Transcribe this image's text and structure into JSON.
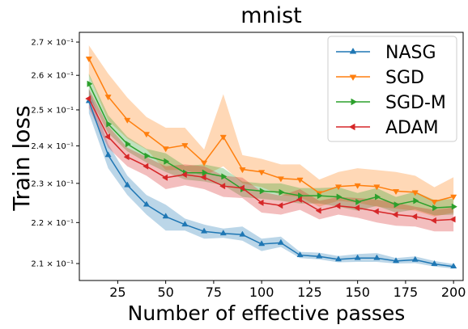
{
  "chart_data": {
    "type": "line",
    "title": "mnist",
    "xlabel": "Number of effective passes",
    "ylabel": "Train loss",
    "xlim": [
      5,
      205
    ],
    "ylim": [
      0.206,
      0.273
    ],
    "yscale": "log",
    "xticks": [
      25,
      50,
      75,
      100,
      125,
      150,
      175,
      200
    ],
    "yticks": [
      {
        "value": 0.21,
        "label": "2.1 × 10⁻¹"
      },
      {
        "value": 0.22,
        "label": "2.2 × 10⁻¹"
      },
      {
        "value": 0.23,
        "label": "2.3 × 10⁻¹"
      },
      {
        "value": 0.24,
        "label": "2.4 × 10⁻¹"
      },
      {
        "value": 0.25,
        "label": "2.5 × 10⁻¹"
      },
      {
        "value": 0.26,
        "label": "2.6 × 10⁻¹"
      },
      {
        "value": 0.27,
        "label": "2.7 × 10⁻¹"
      }
    ],
    "grid": false,
    "legend_position": "top-right",
    "x": [
      10,
      20,
      30,
      40,
      50,
      60,
      70,
      80,
      90,
      100,
      110,
      120,
      130,
      140,
      150,
      160,
      170,
      180,
      190,
      200
    ],
    "series": [
      {
        "name": "NASG",
        "color": "#1f77b4",
        "marker": "triangle-up",
        "values": [
          0.2525,
          0.2375,
          0.2295,
          0.2245,
          0.2215,
          0.2195,
          0.2178,
          0.2173,
          0.217,
          0.2147,
          0.215,
          0.212,
          0.2117,
          0.211,
          0.2113,
          0.2113,
          0.2106,
          0.2109,
          0.2099,
          0.2093
        ],
        "lower": [
          0.249,
          0.234,
          0.227,
          0.222,
          0.218,
          0.218,
          0.216,
          0.2162,
          0.2155,
          0.213,
          0.214,
          0.2113,
          0.211,
          0.2103,
          0.2104,
          0.2104,
          0.21,
          0.2101,
          0.2093,
          0.2088
        ],
        "upper": [
          0.256,
          0.2405,
          0.232,
          0.227,
          0.2245,
          0.221,
          0.2195,
          0.2185,
          0.219,
          0.216,
          0.2165,
          0.2128,
          0.2126,
          0.2118,
          0.2123,
          0.2125,
          0.2113,
          0.2117,
          0.2106,
          0.2099
        ]
      },
      {
        "name": "SGD",
        "color": "#ff7f0e",
        "marker": "triangle-down",
        "values": [
          0.265,
          0.2538,
          0.2472,
          0.2433,
          0.2393,
          0.2402,
          0.2355,
          0.2425,
          0.2337,
          0.233,
          0.2313,
          0.231,
          0.2275,
          0.2292,
          0.2295,
          0.2292,
          0.228,
          0.2277,
          0.2253,
          0.2266
        ],
        "lower": [
          0.26,
          0.247,
          0.242,
          0.239,
          0.2335,
          0.2335,
          0.232,
          0.2345,
          0.23,
          0.229,
          0.227,
          0.2265,
          0.224,
          0.2255,
          0.225,
          0.224,
          0.2235,
          0.223,
          0.2215,
          0.2225
        ],
        "upper": [
          0.269,
          0.2605,
          0.2535,
          0.248,
          0.245,
          0.245,
          0.239,
          0.2545,
          0.2375,
          0.2365,
          0.235,
          0.235,
          0.231,
          0.233,
          0.234,
          0.2335,
          0.233,
          0.232,
          0.229,
          0.2316
        ]
      },
      {
        "name": "SGD-M",
        "color": "#2ca02c",
        "marker": "triangle-right",
        "values": [
          0.2575,
          0.246,
          0.2405,
          0.2373,
          0.2358,
          0.2328,
          0.2328,
          0.2318,
          0.2285,
          0.228,
          0.2277,
          0.2268,
          0.2268,
          0.2265,
          0.2252,
          0.2265,
          0.2245,
          0.2255,
          0.2237,
          0.224
        ],
        "lower": [
          0.254,
          0.2435,
          0.2385,
          0.2355,
          0.233,
          0.231,
          0.2305,
          0.2295,
          0.2265,
          0.226,
          0.2255,
          0.2248,
          0.2248,
          0.224,
          0.223,
          0.2242,
          0.2225,
          0.2233,
          0.2218,
          0.222
        ],
        "upper": [
          0.2605,
          0.2485,
          0.2425,
          0.2392,
          0.238,
          0.2346,
          0.235,
          0.234,
          0.2305,
          0.23,
          0.23,
          0.2288,
          0.2288,
          0.229,
          0.2275,
          0.2288,
          0.2265,
          0.2278,
          0.2257,
          0.226
        ]
      },
      {
        "name": "ADAM",
        "color": "#d62728",
        "marker": "triangle-left",
        "values": [
          0.2532,
          0.2425,
          0.237,
          0.2345,
          0.2315,
          0.2323,
          0.2316,
          0.2293,
          0.2288,
          0.225,
          0.2243,
          0.2258,
          0.223,
          0.2242,
          0.2237,
          0.2228,
          0.222,
          0.2215,
          0.2205,
          0.2208
        ],
        "lower": [
          0.2505,
          0.2395,
          0.2345,
          0.232,
          0.2285,
          0.2295,
          0.2285,
          0.2265,
          0.2262,
          0.2225,
          0.222,
          0.2232,
          0.2208,
          0.222,
          0.2212,
          0.22,
          0.2192,
          0.219,
          0.2178,
          0.2178
        ],
        "upper": [
          0.256,
          0.2455,
          0.2395,
          0.237,
          0.2345,
          0.235,
          0.2345,
          0.232,
          0.2315,
          0.2278,
          0.2268,
          0.2285,
          0.2255,
          0.2265,
          0.2262,
          0.2258,
          0.225,
          0.224,
          0.2232,
          0.2238
        ]
      }
    ]
  }
}
